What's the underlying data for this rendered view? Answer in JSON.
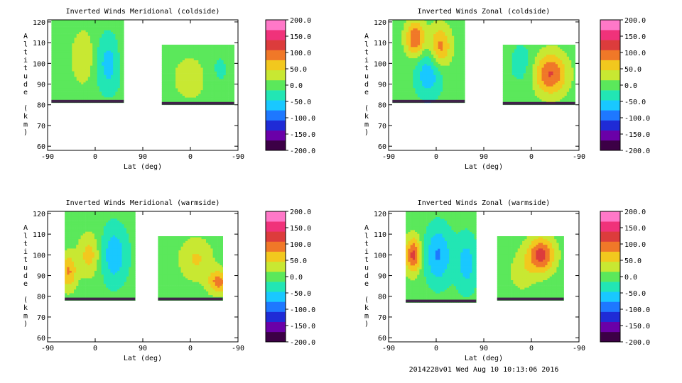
{
  "colorbar": {
    "labels": [
      "200.0",
      "150.0",
      "100.0",
      "50.0",
      "0.0",
      "-50.0",
      "-100.0",
      "-150.0",
      "-200.0"
    ],
    "colors": [
      "#3c0046",
      "#6a00a8",
      "#1f2bd6",
      "#1e78ff",
      "#19c8ff",
      "#22e6b4",
      "#5be85b",
      "#c8e832",
      "#f2c81e",
      "#f07828",
      "#dc3c3c",
      "#f0327a",
      "#ff78c8"
    ]
  },
  "footer": "2014228v01 Wed Aug 10 10:13:06 2016",
  "chart_data": [
    {
      "type": "heatmap",
      "title": "Inverted Winds Meridional (coldside)",
      "xlabel": "Lat (deg)",
      "ylabel": "Altitude (km)",
      "xticks": [
        "-90",
        "0",
        "90",
        "0",
        "-90"
      ],
      "yticks": [
        "60",
        "70",
        "80",
        "90",
        "100",
        "110",
        "120"
      ],
      "ylim": [
        58,
        121
      ],
      "zlim": [
        -200,
        200
      ],
      "blobs": [
        {
          "x": 0.19,
          "y": 103,
          "v": 45,
          "sx": 0.045,
          "sy": 9
        },
        {
          "x": 0.32,
          "y": 100,
          "v": -60,
          "sx": 0.05,
          "sy": 10
        },
        {
          "x": 0.44,
          "y": 106,
          "v": 40,
          "sx": 0.045,
          "sy": 8
        },
        {
          "x": 0.75,
          "y": 93,
          "v": 40,
          "sx": 0.06,
          "sy": 7
        },
        {
          "x": 0.9,
          "y": 97,
          "v": -20,
          "sx": 0.05,
          "sy": 8
        }
      ],
      "regions": [
        {
          "x0": 0.02,
          "x1": 0.4,
          "y0": 81,
          "y1": 121
        },
        {
          "x0": 0.6,
          "x1": 0.98,
          "y0": 80,
          "y1": 109
        }
      ]
    },
    {
      "type": "heatmap",
      "title": "Inverted Winds Zonal (coldside)",
      "xlabel": "Lat (deg)",
      "ylabel": "Altitude (km)",
      "xticks": [
        "-90",
        "0",
        "90",
        "0",
        "-90"
      ],
      "yticks": [
        "60",
        "70",
        "80",
        "90",
        "100",
        "110",
        "120"
      ],
      "ylim": [
        58,
        121
      ],
      "zlim": [
        -200,
        200
      ],
      "blobs": [
        {
          "x": 0.14,
          "y": 112,
          "v": 110,
          "sx": 0.035,
          "sy": 6
        },
        {
          "x": 0.27,
          "y": 108,
          "v": 90,
          "sx": 0.04,
          "sy": 7
        },
        {
          "x": 0.21,
          "y": 95,
          "v": -70,
          "sx": 0.05,
          "sy": 8
        },
        {
          "x": 0.85,
          "y": 95,
          "v": 110,
          "sx": 0.06,
          "sy": 7
        },
        {
          "x": 0.7,
          "y": 100,
          "v": -30,
          "sx": 0.05,
          "sy": 8
        }
      ],
      "regions": [
        {
          "x0": 0.02,
          "x1": 0.4,
          "y0": 81,
          "y1": 121
        },
        {
          "x0": 0.6,
          "x1": 0.98,
          "y0": 80,
          "y1": 109
        }
      ]
    },
    {
      "type": "heatmap",
      "title": "Inverted Winds Meridional (warmside)",
      "xlabel": "Lat (deg)",
      "ylabel": "Altitude (km)",
      "xticks": [
        "-90",
        "0",
        "90",
        "0",
        "-90"
      ],
      "yticks": [
        "60",
        "70",
        "80",
        "90",
        "100",
        "110",
        "120"
      ],
      "ylim": [
        58,
        121
      ],
      "zlim": [
        -200,
        200
      ],
      "blobs": [
        {
          "x": 0.11,
          "y": 92,
          "v": 80,
          "sx": 0.03,
          "sy": 6
        },
        {
          "x": 0.22,
          "y": 100,
          "v": 60,
          "sx": 0.04,
          "sy": 7
        },
        {
          "x": 0.35,
          "y": 100,
          "v": -70,
          "sx": 0.05,
          "sy": 10
        },
        {
          "x": 0.78,
          "y": 98,
          "v": 50,
          "sx": 0.06,
          "sy": 7
        },
        {
          "x": 0.9,
          "y": 87,
          "v": 90,
          "sx": 0.04,
          "sy": 4
        }
      ],
      "regions": [
        {
          "x0": 0.09,
          "x1": 0.46,
          "y0": 78,
          "y1": 121
        },
        {
          "x0": 0.58,
          "x1": 0.92,
          "y0": 78,
          "y1": 109
        }
      ]
    },
    {
      "type": "heatmap",
      "title": "Inverted Winds Zonal (warmside)",
      "xlabel": "Lat (deg)",
      "ylabel": "Altitude (km)",
      "xticks": [
        "-90",
        "0",
        "90",
        "0",
        "-90"
      ],
      "yticks": [
        "60",
        "70",
        "80",
        "90",
        "100",
        "110",
        "120"
      ],
      "ylim": [
        58,
        121
      ],
      "zlim": [
        -200,
        200
      ],
      "blobs": [
        {
          "x": 0.13,
          "y": 100,
          "v": 120,
          "sx": 0.03,
          "sy": 6
        },
        {
          "x": 0.26,
          "y": 100,
          "v": -80,
          "sx": 0.05,
          "sy": 10
        },
        {
          "x": 0.41,
          "y": 96,
          "v": -60,
          "sx": 0.04,
          "sy": 10
        },
        {
          "x": 0.8,
          "y": 100,
          "v": 120,
          "sx": 0.05,
          "sy": 6
        },
        {
          "x": 0.7,
          "y": 92,
          "v": 30,
          "sx": 0.05,
          "sy": 7
        }
      ],
      "regions": [
        {
          "x0": 0.09,
          "x1": 0.46,
          "y0": 77,
          "y1": 121
        },
        {
          "x0": 0.57,
          "x1": 0.92,
          "y0": 78,
          "y1": 109
        }
      ]
    }
  ]
}
